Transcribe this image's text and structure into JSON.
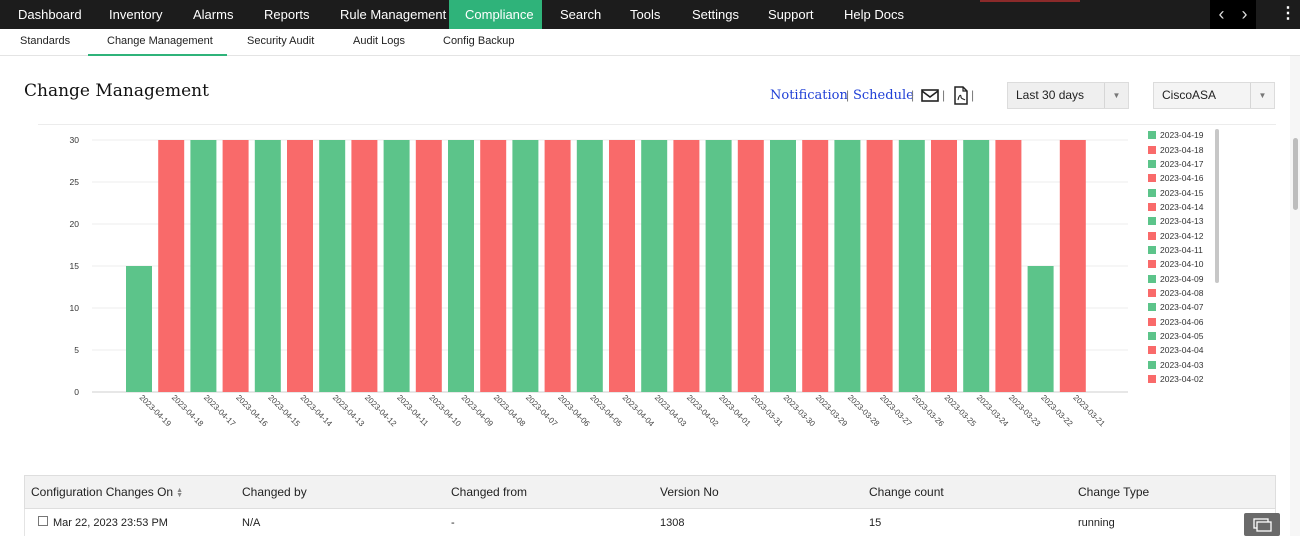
{
  "topnav": {
    "items": [
      {
        "label": "Dashboard"
      },
      {
        "label": "Inventory"
      },
      {
        "label": "Alarms"
      },
      {
        "label": "Reports"
      },
      {
        "label": "Rule Management"
      },
      {
        "label": "Compliance"
      },
      {
        "label": "Search"
      },
      {
        "label": "Tools"
      },
      {
        "label": "Settings"
      },
      {
        "label": "Support"
      },
      {
        "label": "Help Docs"
      }
    ],
    "active": "Compliance",
    "active_color": "#2fb37a"
  },
  "subnav": {
    "items": [
      {
        "label": "Standards"
      },
      {
        "label": "Change Management"
      },
      {
        "label": "Security Audit"
      },
      {
        "label": "Audit Logs"
      },
      {
        "label": "Config Backup"
      }
    ],
    "active": "Change Management"
  },
  "header": {
    "title": "Change Management",
    "notification_label": "Notification",
    "schedule_label": "Schedule",
    "separator": "|",
    "email_icon": "envelope-icon",
    "pdf_icon": "pdf-icon",
    "period_select": "Last 30 days",
    "device_select": "CiscoASA"
  },
  "chart_data": {
    "type": "bar",
    "categories": [
      "2023-04-19",
      "2023-04-18",
      "2023-04-17",
      "2023-04-16",
      "2023-04-15",
      "2023-04-14",
      "2023-04-13",
      "2023-04-12",
      "2023-04-11",
      "2023-04-10",
      "2023-04-09",
      "2023-04-08",
      "2023-04-07",
      "2023-04-06",
      "2023-04-05",
      "2023-04-04",
      "2023-04-03",
      "2023-04-02",
      "2023-04-01",
      "2023-03-31",
      "2023-03-30",
      "2023-03-29",
      "2023-03-28",
      "2023-03-27",
      "2023-03-26",
      "2023-03-25",
      "2023-03-24",
      "2023-03-23",
      "2023-03-22",
      "2023-03-21"
    ],
    "values": [
      15,
      30,
      30,
      30,
      30,
      30,
      30,
      30,
      30,
      30,
      30,
      30,
      30,
      30,
      30,
      30,
      30,
      30,
      30,
      30,
      30,
      30,
      30,
      30,
      30,
      30,
      30,
      30,
      15,
      30
    ],
    "colors": [
      "#5cc48a",
      "#f96a6a",
      "#5cc48a",
      "#f96a6a",
      "#5cc48a",
      "#f96a6a",
      "#5cc48a",
      "#f96a6a",
      "#5cc48a",
      "#f96a6a",
      "#5cc48a",
      "#f96a6a",
      "#5cc48a",
      "#f96a6a",
      "#5cc48a",
      "#f96a6a",
      "#5cc48a",
      "#f96a6a",
      "#5cc48a",
      "#f96a6a",
      "#5cc48a",
      "#f96a6a",
      "#5cc48a",
      "#f96a6a",
      "#5cc48a",
      "#f96a6a",
      "#5cc48a",
      "#f96a6a",
      "#5cc48a",
      "#f96a6a"
    ],
    "yticks": [
      0,
      5,
      10,
      15,
      20,
      25,
      30
    ],
    "ylim": [
      0,
      30
    ],
    "grid": true,
    "legend_placement": "right",
    "legend_visible": [
      "2023-04-19",
      "2023-04-18",
      "2023-04-17",
      "2023-04-16",
      "2023-04-15",
      "2023-04-14",
      "2023-04-13",
      "2023-04-12",
      "2023-04-11",
      "2023-04-10",
      "2023-04-09",
      "2023-04-08",
      "2023-04-07",
      "2023-04-06",
      "2023-04-05",
      "2023-04-04",
      "2023-04-03",
      "2023-04-02"
    ]
  },
  "table": {
    "columns": [
      {
        "label": "Configuration Changes On"
      },
      {
        "label": "Changed by"
      },
      {
        "label": "Changed from"
      },
      {
        "label": "Version No"
      },
      {
        "label": "Change count"
      },
      {
        "label": "Change Type"
      }
    ],
    "rows": [
      {
        "date": "Mar 22, 2023 23:53 PM",
        "changed_by": "N/A",
        "changed_from": "-",
        "version": "1308",
        "count": "15",
        "type": "running"
      }
    ]
  }
}
